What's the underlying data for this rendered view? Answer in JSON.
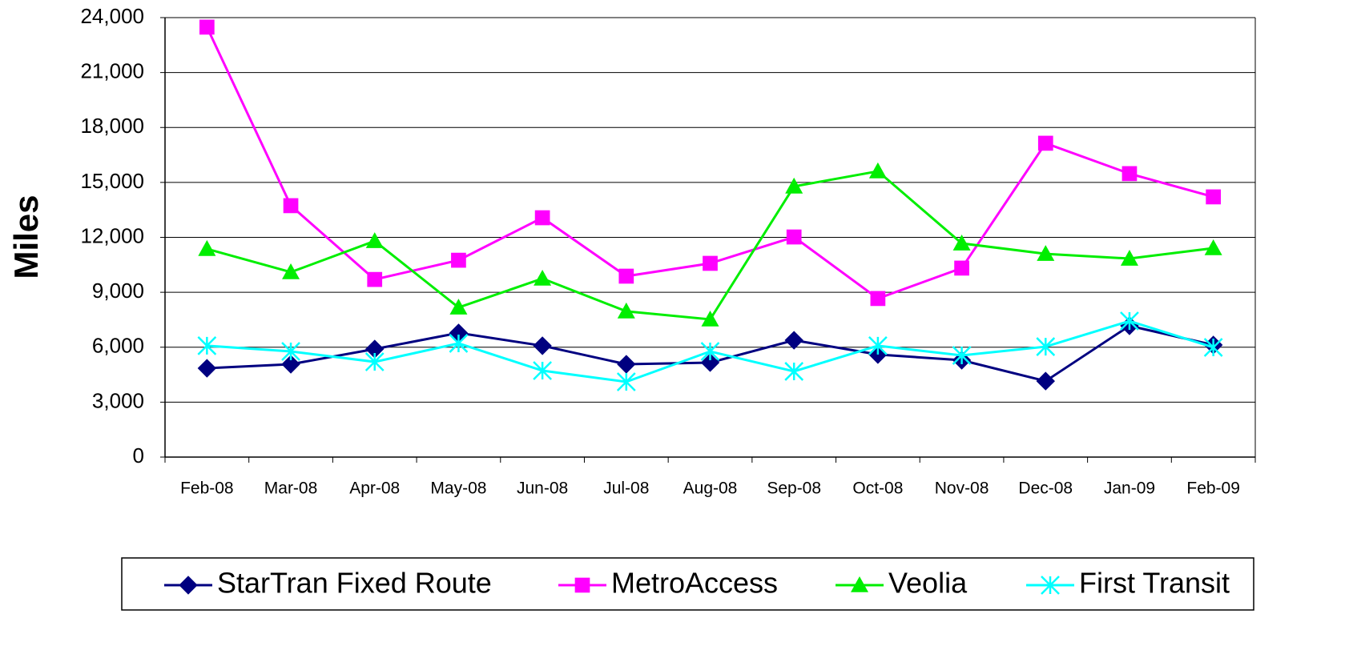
{
  "chart_data": {
    "type": "line",
    "ylabel": "Miles",
    "categories": [
      "Feb-08",
      "Mar-08",
      "Apr-08",
      "May-08",
      "Jun-08",
      "Jul-08",
      "Aug-08",
      "Sep-08",
      "Oct-08",
      "Nov-08",
      "Dec-08",
      "Jan-09",
      "Feb-09"
    ],
    "series": [
      {
        "name": "StarTran Fixed Route",
        "color": "#000080",
        "marker": "diamond",
        "values": [
          4850,
          5070,
          5900,
          6780,
          6080,
          5070,
          5160,
          6380,
          5600,
          5290,
          4150,
          7170,
          6120
        ]
      },
      {
        "name": "MetroAccess",
        "color": "#ff00ff",
        "marker": "square",
        "values": [
          23480,
          13730,
          9700,
          10750,
          13070,
          9880,
          10580,
          12020,
          8660,
          10320,
          17140,
          15480,
          14210
        ]
      },
      {
        "name": "Veolia",
        "color": "#00ee00",
        "marker": "triangle",
        "values": [
          11370,
          10100,
          11800,
          8170,
          9750,
          7960,
          7520,
          14780,
          15610,
          11670,
          11100,
          10840,
          11410
        ]
      },
      {
        "name": "First Transit",
        "color": "#00ffff",
        "marker": "star",
        "values": [
          6080,
          5770,
          5200,
          6210,
          4720,
          4110,
          5770,
          4680,
          6080,
          5550,
          6030,
          7430,
          5990
        ]
      }
    ],
    "ylim": [
      0,
      24000
    ],
    "yticks": [
      {
        "value": 0,
        "label": "0"
      },
      {
        "value": 3000,
        "label": "3,000"
      },
      {
        "value": 6000,
        "label": "6,000"
      },
      {
        "value": 9000,
        "label": "9,000"
      },
      {
        "value": 12000,
        "label": "12,000"
      },
      {
        "value": 15000,
        "label": "15,000"
      },
      {
        "value": 18000,
        "label": "18,000"
      },
      {
        "value": 21000,
        "label": "21,000"
      },
      {
        "value": 24000,
        "label": "24,000"
      }
    ],
    "grid": true,
    "legend": "bottom"
  }
}
